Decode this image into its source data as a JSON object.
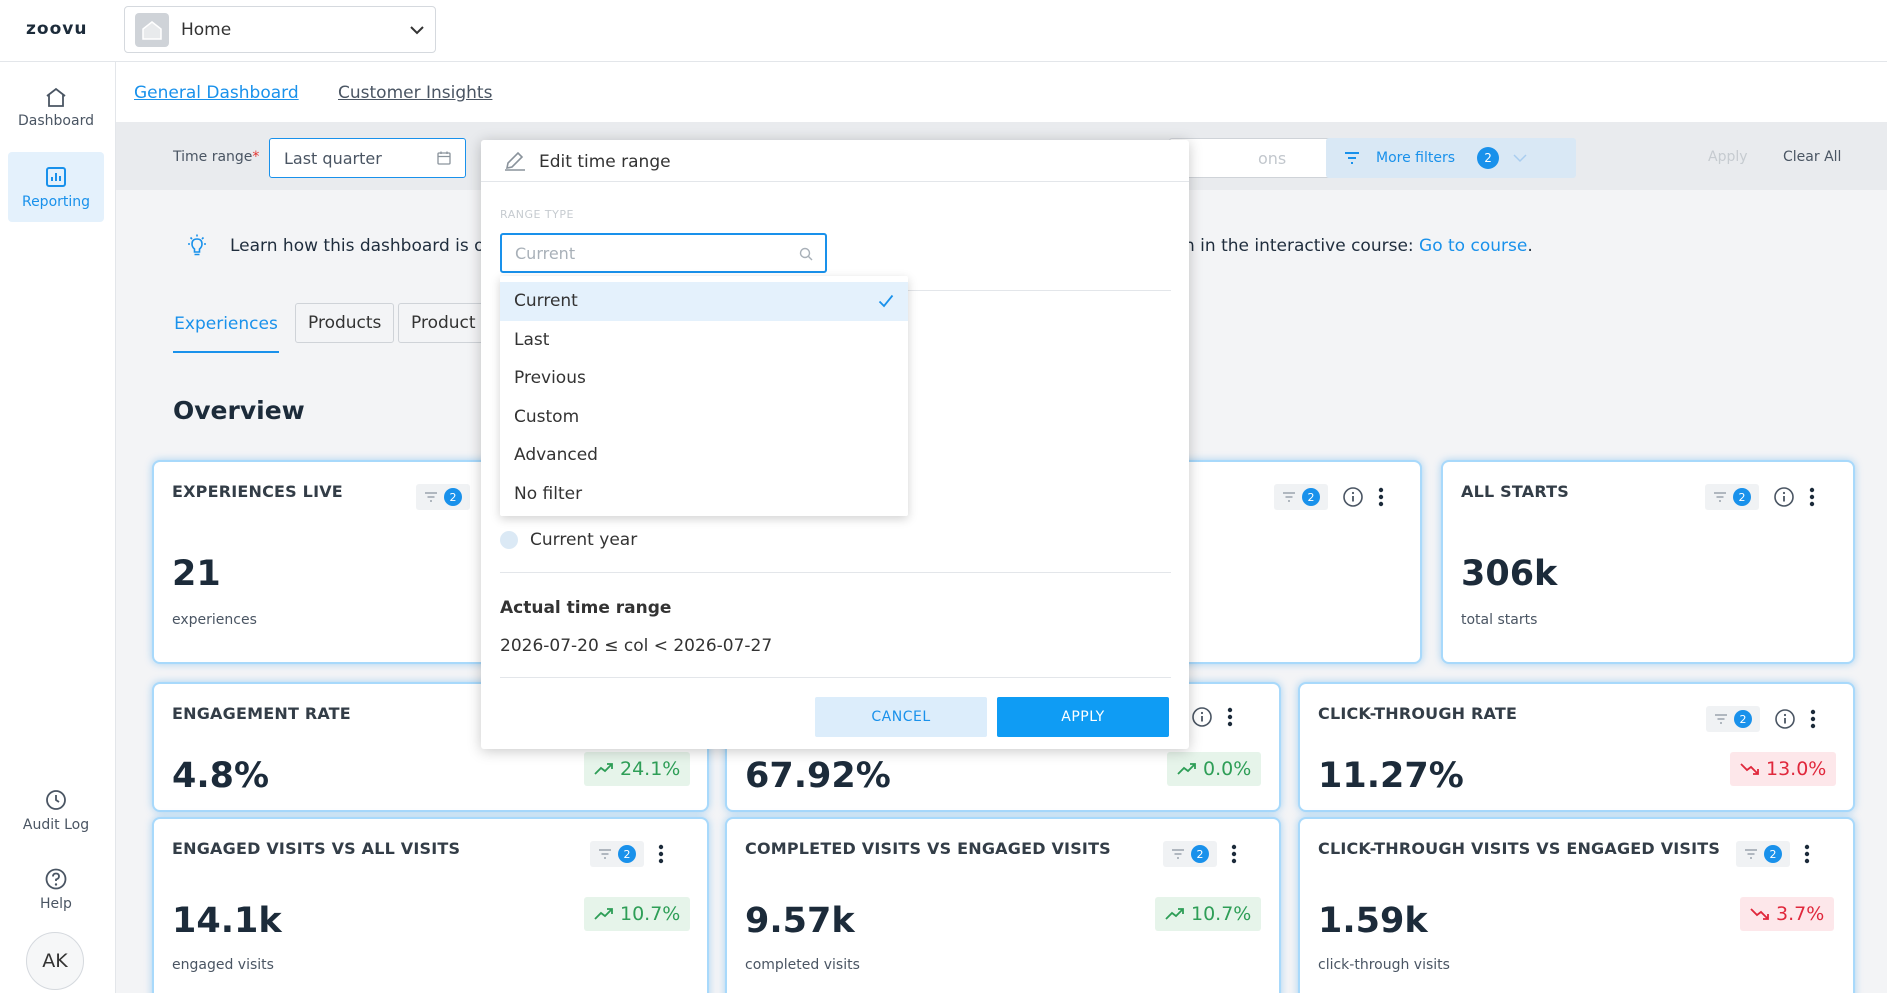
{
  "app": {
    "logo": "zoovu"
  },
  "header": {
    "workspace": "Home"
  },
  "sidebar": {
    "items": [
      {
        "label": "Dashboard",
        "icon": "home-icon",
        "active": false
      },
      {
        "label": "Reporting",
        "icon": "bar-chart-icon",
        "active": true
      }
    ],
    "bottom": [
      {
        "label": "Audit Log",
        "icon": "history-icon"
      },
      {
        "label": "Help",
        "icon": "help-icon"
      }
    ],
    "avatar": "AK"
  },
  "top_tabs": [
    {
      "label": "General Dashboard",
      "active": true
    },
    {
      "label": "Customer Insights",
      "active": false
    }
  ],
  "filters": {
    "time_range_label": "Time range",
    "time_range_required": "*",
    "time_range_value": "Last quarter",
    "hidden_select_value": "ons",
    "more_filters_label": "More filters",
    "more_filters_count": "2",
    "apply_label": "Apply",
    "clear_label": "Clear All"
  },
  "learn_banner": {
    "text_start": "Learn how this dashboard is org",
    "text_end": "n in the interactive course: ",
    "link": "Go to course",
    "period": "."
  },
  "content_tabs": [
    {
      "label": "Experiences",
      "active": true
    },
    {
      "label": "Products",
      "active": false
    },
    {
      "label": "Product b",
      "active": false
    }
  ],
  "overview_title": "Overview",
  "cards": {
    "experiences_live": {
      "title": "EXPERIENCES LIVE",
      "value": "21",
      "sub": "experiences",
      "filters": "2"
    },
    "hidden_top": {
      "filters": "2"
    },
    "all_starts": {
      "title": "ALL STARTS",
      "value": "306k",
      "sub": "total starts",
      "filters": "2"
    },
    "engagement_rate": {
      "title": "ENGAGEMENT RATE",
      "value": "4.8%",
      "delta": "24.1%"
    },
    "completion": {
      "value": "67.92%",
      "delta": "0.0%"
    },
    "ctr": {
      "title": "CLICK-THROUGH RATE",
      "value": "11.27%",
      "delta": "13.0%",
      "filters": "2"
    },
    "engaged_visits": {
      "title": "ENGAGED VISITS VS ALL VISITS",
      "value": "14.1k",
      "sub": "engaged visits",
      "delta": "10.7%",
      "filters": "2"
    },
    "completed_visits": {
      "title": "COMPLETED VISITS VS ENGAGED VISITS",
      "value": "9.57k",
      "sub": "completed visits",
      "delta": "10.7%",
      "filters": "2"
    },
    "ct_visits": {
      "title": "CLICK-THROUGH VISITS VS ENGAGED VISITS",
      "value": "1.59k",
      "sub": "click-through visits",
      "delta": "3.7%",
      "filters": "2"
    }
  },
  "popup": {
    "title": "Edit time range",
    "range_type_label": "RANGE TYPE",
    "range_type_placeholder": "Current",
    "options": [
      "Current",
      "Last",
      "Previous",
      "Custom",
      "Advanced",
      "No filter"
    ],
    "selected": "Current",
    "radio_option": "Current year",
    "actual_label": "Actual time range",
    "actual_value": "2026-07-20 ≤ col < 2026-07-27",
    "cancel": "CANCEL",
    "apply": "APPLY"
  },
  "colors": {
    "accent": "#1991eb",
    "positive": "#2e9e57",
    "negative": "#e0283c"
  }
}
